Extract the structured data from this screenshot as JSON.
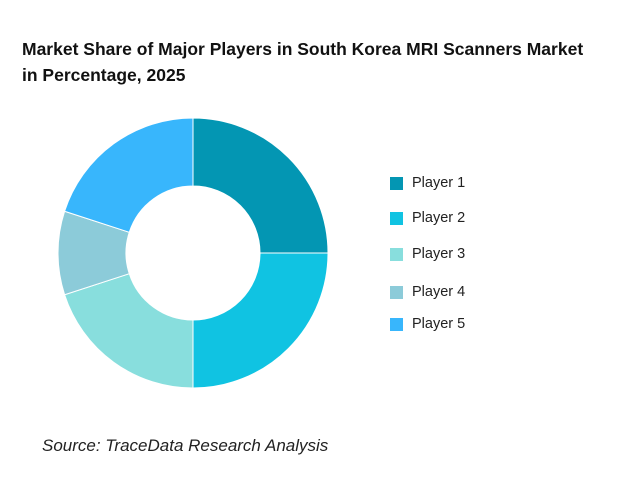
{
  "chart_data": {
    "type": "pie",
    "variant": "donut",
    "title_lines": [
      "Market Share of Major Players in South Korea MRI Scanners Market",
      "in Percentage, 2025"
    ],
    "categories": [
      "Player 1",
      "Player 2",
      "Player 3",
      "Player 4",
      "Player 5"
    ],
    "values": [
      25,
      25,
      20,
      10,
      20
    ],
    "colors": [
      "#0396b3",
      "#10c3e2",
      "#88dedd",
      "#8ccbd9",
      "#38b6fc"
    ],
    "legend_position": "right",
    "source": "Source: TraceData Research Analysis"
  }
}
